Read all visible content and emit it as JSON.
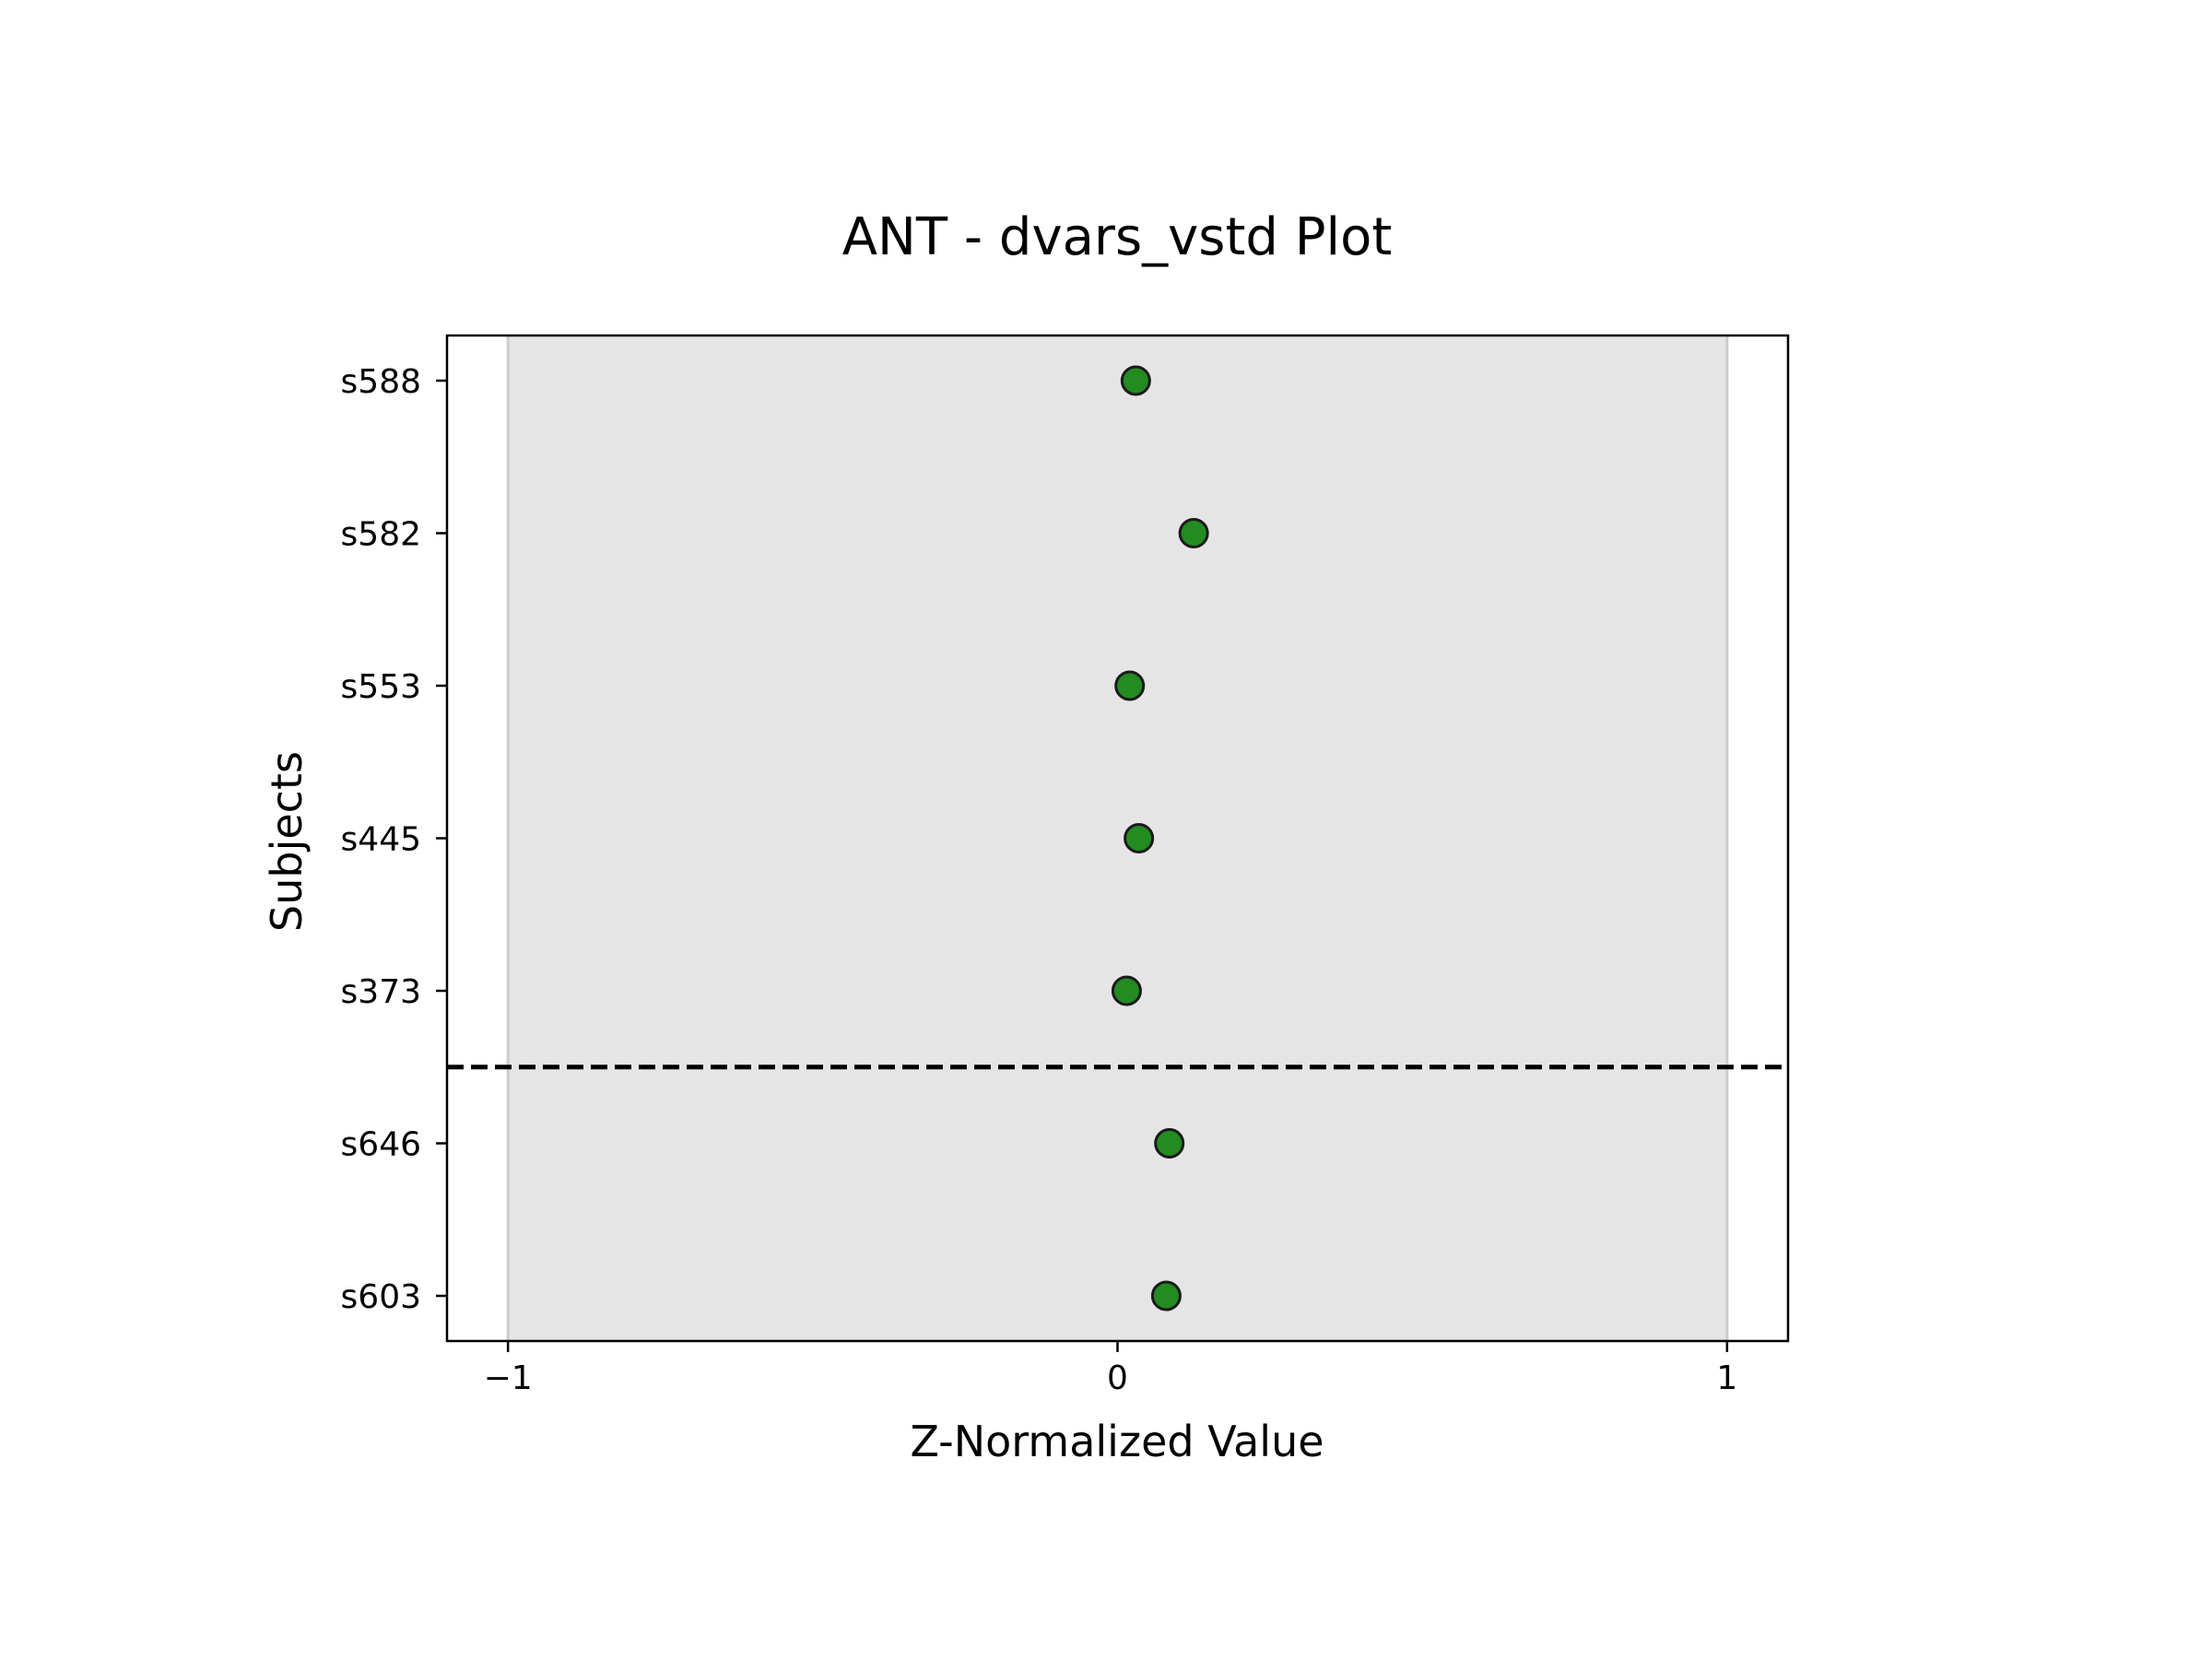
{
  "chart_data": {
    "type": "scatter",
    "title": "ANT - dvars_vstd Plot",
    "xlabel": "Z-Normalized Value",
    "ylabel": "Subjects",
    "xlim": [
      -1.1,
      1.1
    ],
    "xticks": [
      {
        "value": -1,
        "label": "−1"
      },
      {
        "value": 0,
        "label": "0"
      },
      {
        "value": 1,
        "label": "1"
      }
    ],
    "categories": [
      "s603",
      "s646",
      "s373",
      "s445",
      "s553",
      "s582",
      "s588"
    ],
    "values": [
      0.08,
      0.085,
      0.015,
      0.035,
      0.02,
      0.125,
      0.03
    ],
    "shaded_band": {
      "from": -1,
      "to": 1,
      "color": "#e5e5e5",
      "edge_color": "#cccccc"
    },
    "separator": {
      "between": [
        "s646",
        "s373"
      ],
      "style": "dashed",
      "color": "#000000"
    },
    "marker": {
      "fill": "#228b22",
      "edge": "#1a1a1a"
    },
    "grid": false,
    "legend": false
  }
}
